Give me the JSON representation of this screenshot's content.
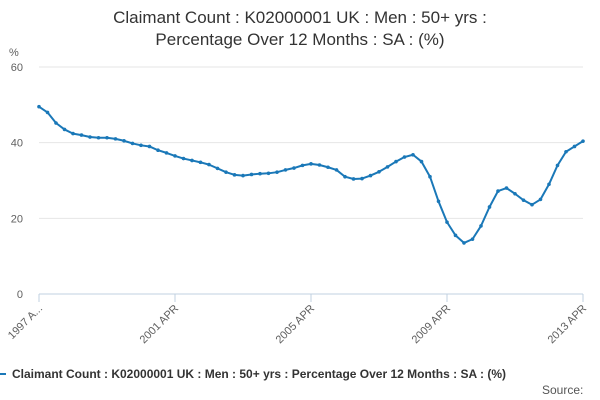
{
  "chart_data": {
    "type": "line",
    "title_lines": [
      "Claimant Count : K02000001 UK : Men : 50+ yrs :",
      "Percentage Over 12 Months : SA : (%)"
    ],
    "ylabel": "%",
    "ylim": [
      0,
      60
    ],
    "yticks": [
      "0",
      "20",
      "40",
      "60"
    ],
    "xlim": [
      "1997-04",
      "2013-04"
    ],
    "xtick_labels": [
      "1997 A...",
      "2001 APR",
      "2005 APR",
      "2009 APR",
      "2013 APR"
    ],
    "xtick_dates": [
      "1997-04",
      "2001-04",
      "2005-04",
      "2009-04",
      "2013-04"
    ],
    "grid": true,
    "legend": "bottom",
    "series": [
      {
        "name": "Claimant Count : K02000001 UK : Men : 50+ yrs : Percentage Over 12 Months : SA : (%)",
        "color": "#1a78b8",
        "points": [
          [
            "1997-04",
            49.5
          ],
          [
            "1997-07",
            48.0
          ],
          [
            "1997-10",
            45.2
          ],
          [
            "1998-01",
            43.5
          ],
          [
            "1998-04",
            42.4
          ],
          [
            "1998-07",
            42.0
          ],
          [
            "1998-10",
            41.5
          ],
          [
            "1999-01",
            41.3
          ],
          [
            "1999-04",
            41.3
          ],
          [
            "1999-07",
            41.0
          ],
          [
            "1999-10",
            40.5
          ],
          [
            "2000-01",
            39.8
          ],
          [
            "2000-04",
            39.3
          ],
          [
            "2000-07",
            39.0
          ],
          [
            "2000-10",
            38.0
          ],
          [
            "2001-01",
            37.3
          ],
          [
            "2001-04",
            36.5
          ],
          [
            "2001-07",
            35.8
          ],
          [
            "2001-10",
            35.3
          ],
          [
            "2002-01",
            34.8
          ],
          [
            "2002-04",
            34.2
          ],
          [
            "2002-07",
            33.2
          ],
          [
            "2002-10",
            32.2
          ],
          [
            "2003-01",
            31.5
          ],
          [
            "2003-04",
            31.3
          ],
          [
            "2003-07",
            31.6
          ],
          [
            "2003-10",
            31.8
          ],
          [
            "2004-01",
            31.9
          ],
          [
            "2004-04",
            32.2
          ],
          [
            "2004-07",
            32.8
          ],
          [
            "2004-10",
            33.3
          ],
          [
            "2005-01",
            34.0
          ],
          [
            "2005-04",
            34.4
          ],
          [
            "2005-07",
            34.1
          ],
          [
            "2005-10",
            33.5
          ],
          [
            "2006-01",
            32.8
          ],
          [
            "2006-04",
            31.0
          ],
          [
            "2006-07",
            30.4
          ],
          [
            "2006-10",
            30.5
          ],
          [
            "2007-01",
            31.3
          ],
          [
            "2007-04",
            32.3
          ],
          [
            "2007-07",
            33.6
          ],
          [
            "2007-10",
            35.0
          ],
          [
            "2008-01",
            36.2
          ],
          [
            "2008-04",
            36.8
          ],
          [
            "2008-07",
            35.0
          ],
          [
            "2008-10",
            31.0
          ],
          [
            "2009-01",
            24.5
          ],
          [
            "2009-04",
            19.0
          ],
          [
            "2009-07",
            15.5
          ],
          [
            "2009-10",
            13.5
          ],
          [
            "2010-01",
            14.5
          ],
          [
            "2010-04",
            18.0
          ],
          [
            "2010-07",
            23.0
          ],
          [
            "2010-10",
            27.2
          ],
          [
            "2011-01",
            28.0
          ],
          [
            "2011-04",
            26.5
          ],
          [
            "2011-07",
            24.8
          ],
          [
            "2011-10",
            23.6
          ],
          [
            "2012-01",
            25.0
          ],
          [
            "2012-04",
            29.0
          ],
          [
            "2012-07",
            34.0
          ],
          [
            "2012-10",
            37.6
          ],
          [
            "2013-01",
            39.0
          ],
          [
            "2013-04",
            40.4
          ]
        ]
      }
    ],
    "source_label": "Source:"
  }
}
